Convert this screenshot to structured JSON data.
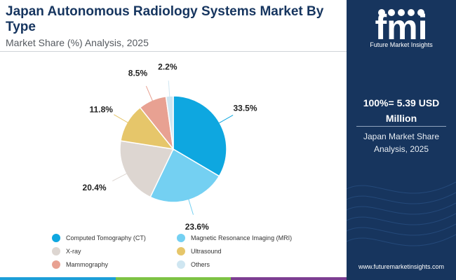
{
  "header": {
    "title": "Japan Autonomous Radiology Systems Market By Type",
    "subtitle": "Market Share (%) Analysis, 2025"
  },
  "colors": {
    "navy": "#17355e",
    "bottom_bar": [
      "#1c9fd8",
      "#7ec344",
      "#7d3e92"
    ]
  },
  "chart_data": {
    "type": "pie",
    "categories": [
      "Computed Tomography (CT)",
      "Magnetic Resonance Imaging (MRI)",
      "X-ray",
      "Ultrasound",
      "Mammography",
      "Others"
    ],
    "values": [
      33.5,
      23.6,
      20.4,
      11.8,
      8.5,
      2.2
    ],
    "labels": [
      "33.5%",
      "23.6%",
      "20.4%",
      "11.8%",
      "8.5%",
      "2.2%"
    ],
    "colors": [
      "#0ea7e0",
      "#74d0f2",
      "#ddd6d1",
      "#e6c66a",
      "#e8a192",
      "#cfe6f1"
    ],
    "legend_position": "bottom"
  },
  "sidebar": {
    "logo_text": "fmi",
    "logo_tagline": "Future Market Insights",
    "total": "100%= 5.39 USD Million",
    "label": "Japan Market Share Analysis, 2025",
    "website": "www.futuremarketinsights.com"
  }
}
